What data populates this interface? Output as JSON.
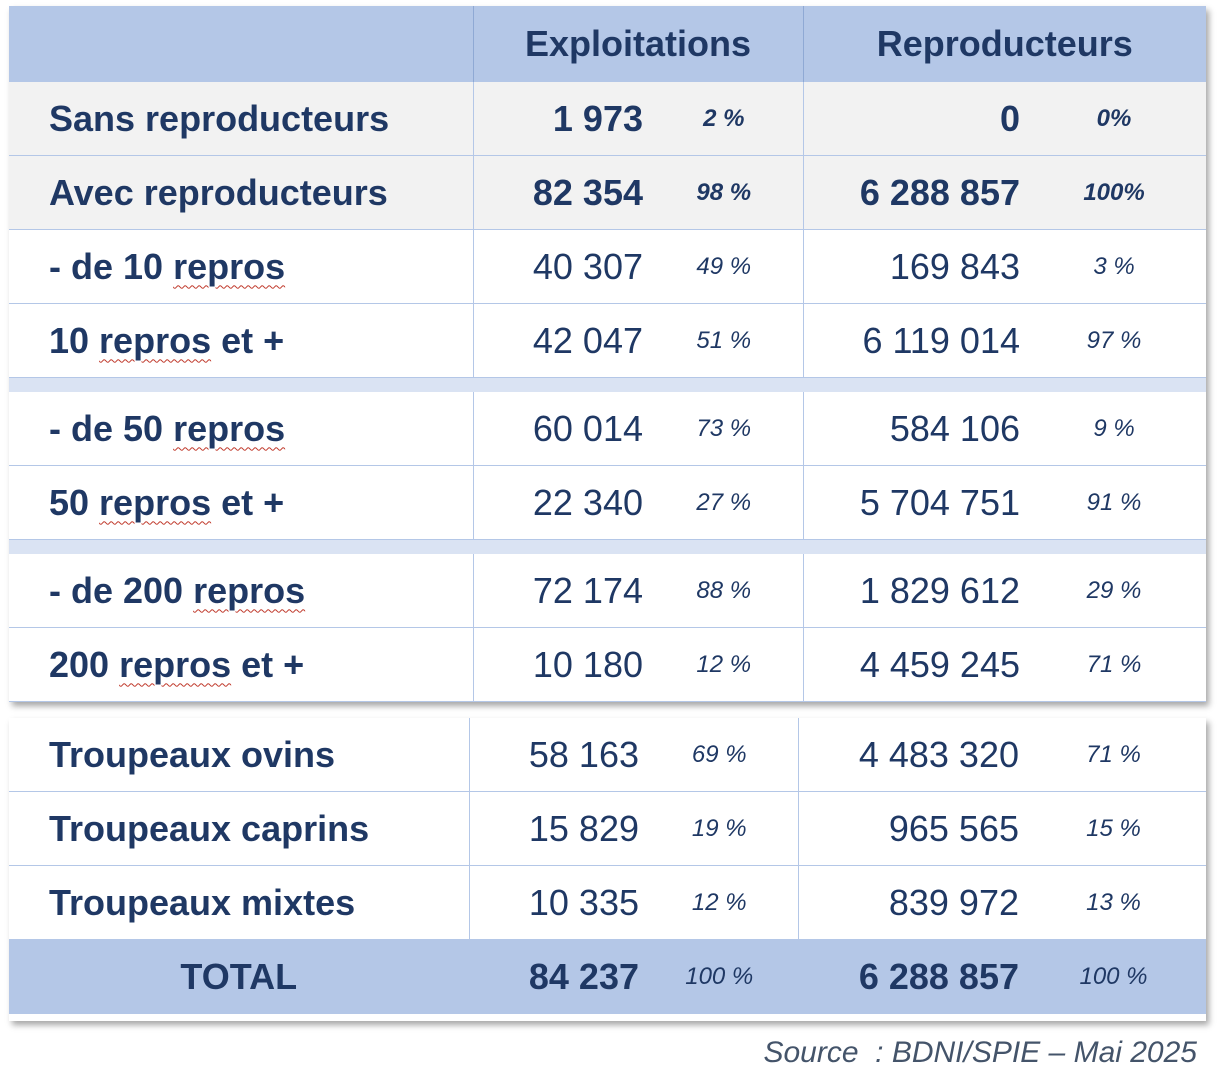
{
  "header": {
    "col_exploitations": "Exploitations",
    "col_reproducteurs": "Reproducteurs"
  },
  "rows": [
    {
      "label": "Sans reproducteurs",
      "expl": "1 973",
      "expl_pct": "2 %",
      "repro": "0",
      "repro_pct": "0%"
    },
    {
      "label": "Avec reproducteurs",
      "expl": "82 354",
      "expl_pct": "98 %",
      "repro": "6 288 857",
      "repro_pct": "100%"
    },
    {
      "label_prefix": "- de 10 ",
      "label_word": "repros",
      "label_suffix": "",
      "expl": "40 307",
      "expl_pct": "49 %",
      "repro": "169 843",
      "repro_pct": "3 %"
    },
    {
      "label_prefix": "10 ",
      "label_word": "repros",
      "label_suffix": " et +",
      "expl": "42 047",
      "expl_pct": "51 %",
      "repro": "6 119 014",
      "repro_pct": "97 %"
    },
    {
      "label_prefix": "- de 50 ",
      "label_word": "repros",
      "label_suffix": "",
      "expl": "60 014",
      "expl_pct": "73 %",
      "repro": "584 106",
      "repro_pct": "9 %"
    },
    {
      "label_prefix": "50 ",
      "label_word": "repros",
      "label_suffix": " et +",
      "expl": "22 340",
      "expl_pct": "27 %",
      "repro": "5 704 751",
      "repro_pct": "91 %"
    },
    {
      "label_prefix": "- de 200 ",
      "label_word": "repros",
      "label_suffix": "",
      "expl": "72 174",
      "expl_pct": "88 %",
      "repro": "1 829 612",
      "repro_pct": "29 %"
    },
    {
      "label_prefix": "200 ",
      "label_word": "repros",
      "label_suffix": " et +",
      "expl": "10 180",
      "expl_pct": "12 %",
      "repro": "4 459 245",
      "repro_pct": "71 %"
    }
  ],
  "troupeaux": [
    {
      "label": "Troupeaux ovins",
      "expl": "58 163",
      "expl_pct": "69 %",
      "repro": "4 483 320",
      "repro_pct": "71 %"
    },
    {
      "label": "Troupeaux caprins",
      "expl": "15 829",
      "expl_pct": "19 %",
      "repro": "965 565",
      "repro_pct": "15 %"
    },
    {
      "label": "Troupeaux mixtes",
      "expl": "10 335",
      "expl_pct": "12 %",
      "repro": "839 972",
      "repro_pct": "13 %"
    }
  ],
  "total": {
    "label": "TOTAL",
    "expl": "84 237",
    "expl_pct": "100 %",
    "repro": "6 288 857",
    "repro_pct": "100 %"
  },
  "source": "Source  : BDNI/SPIE – Mai 2025",
  "colors": {
    "header_bg": "#b4c7e7",
    "grey_row": "#f2f2f2",
    "separator": "#dae3f3",
    "text": "#1f3864"
  }
}
